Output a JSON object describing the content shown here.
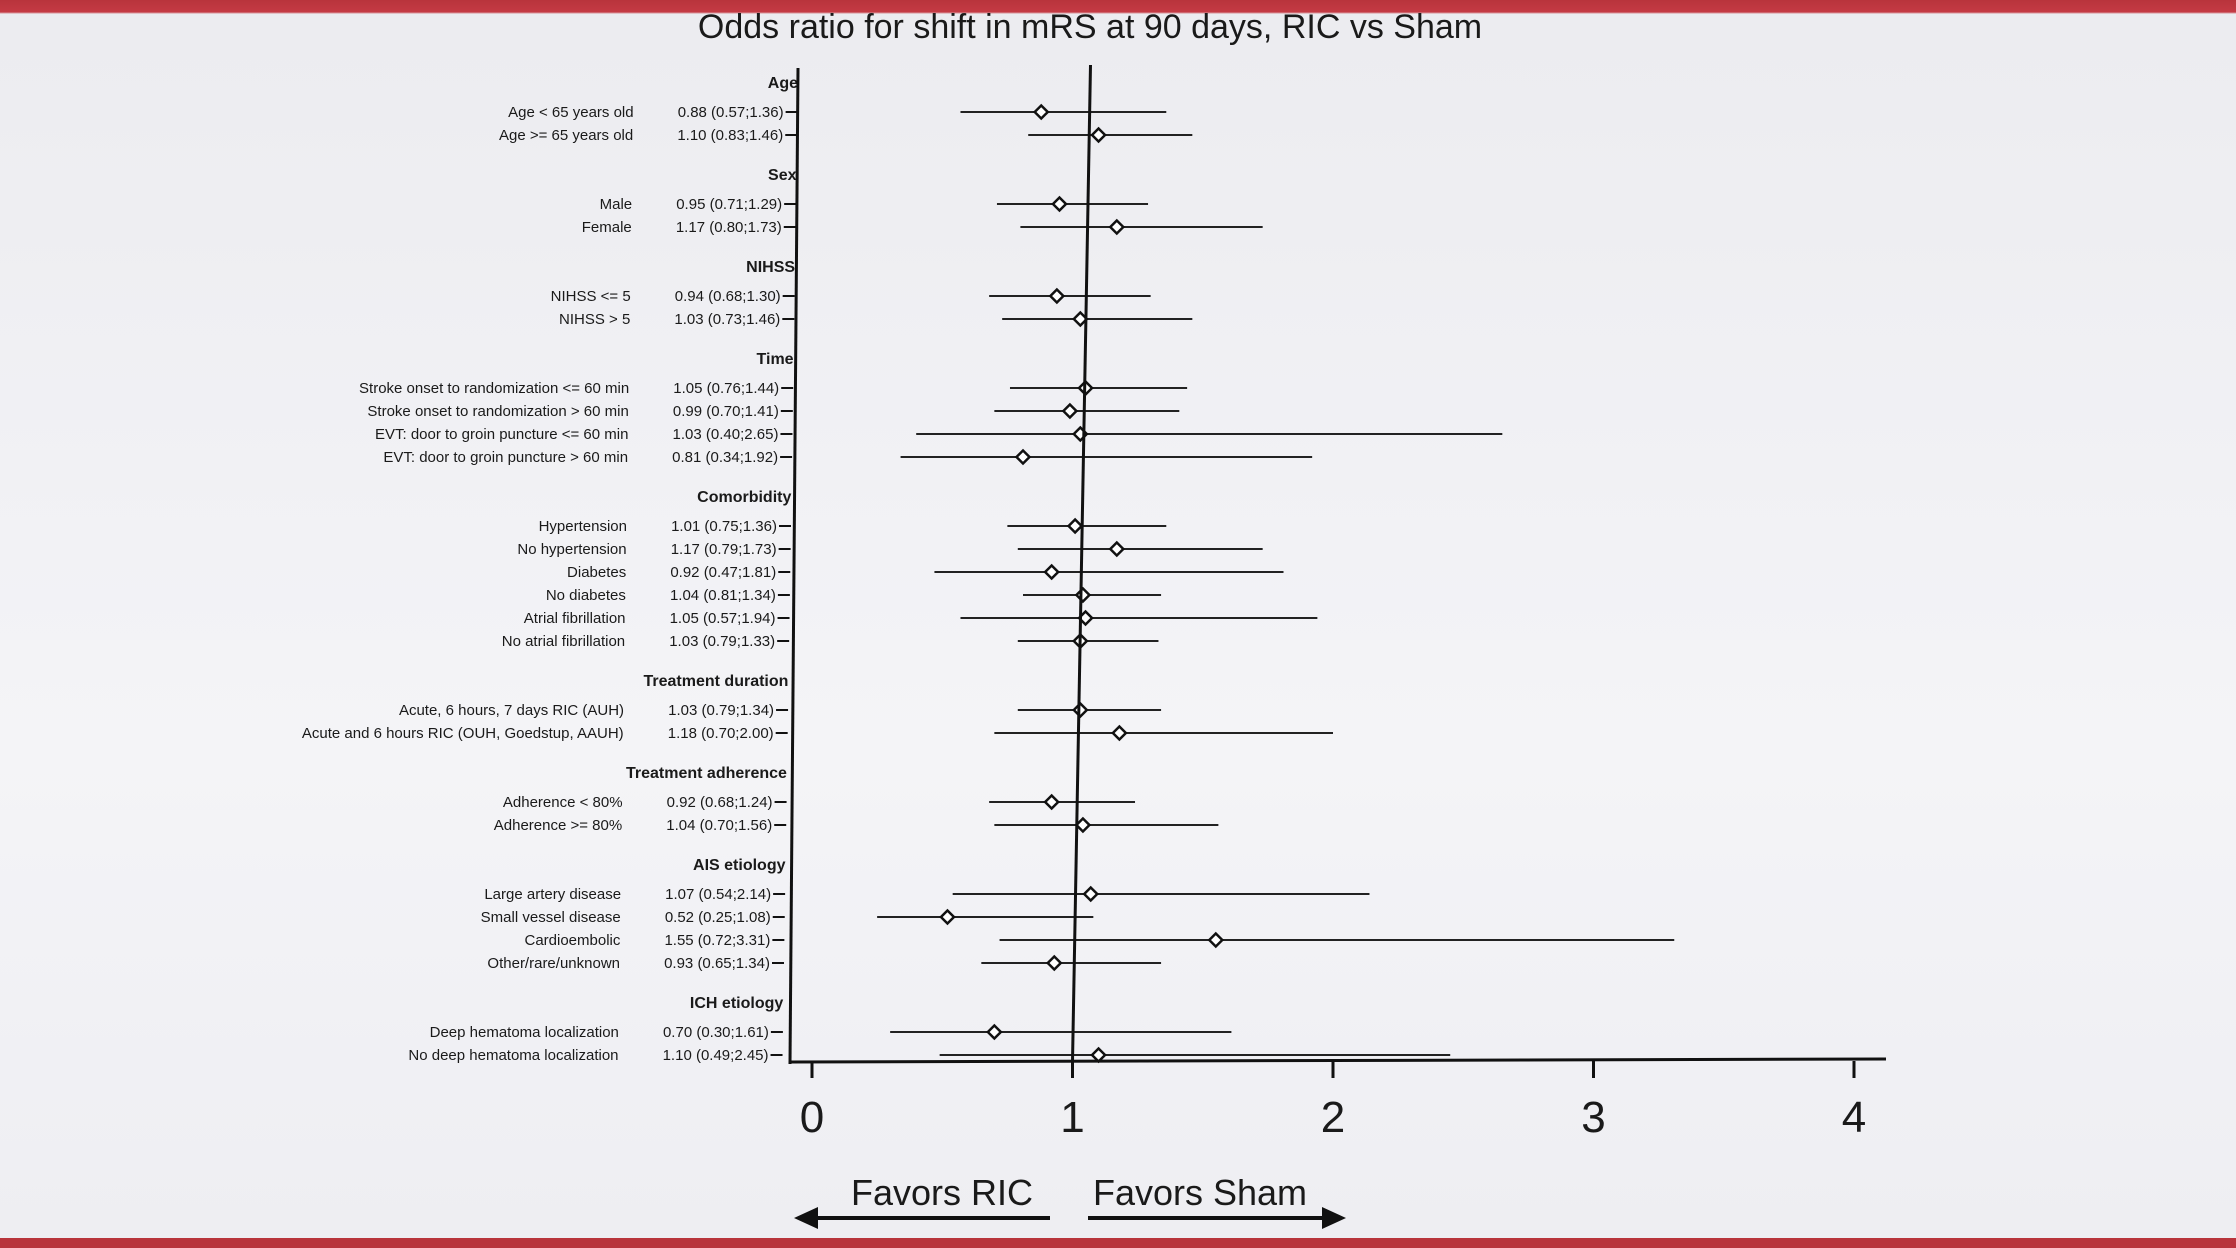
{
  "chart_data": {
    "type": "forest",
    "title": "Odds ratio for shift in mRS at 90 days, RIC vs Sham",
    "xlim": [
      0,
      4
    ],
    "x_ticks": [
      "0",
      "1",
      "2",
      "3",
      "4"
    ],
    "reference_line": 1,
    "favors_left": "Favors RIC",
    "favors_right": "Favors Sham",
    "groups": [
      {
        "name": "Age",
        "rows": [
          {
            "label": "Age < 65 years old",
            "ci_text": "0.88 (0.57;1.36)",
            "or": 0.88,
            "lo": 0.57,
            "hi": 1.36
          },
          {
            "label": "Age >= 65 years old",
            "ci_text": "1.10 (0.83;1.46)",
            "or": 1.1,
            "lo": 0.83,
            "hi": 1.46
          }
        ]
      },
      {
        "name": "Sex",
        "rows": [
          {
            "label": "Male",
            "ci_text": "0.95 (0.71;1.29)",
            "or": 0.95,
            "lo": 0.71,
            "hi": 1.29
          },
          {
            "label": "Female",
            "ci_text": "1.17 (0.80;1.73)",
            "or": 1.17,
            "lo": 0.8,
            "hi": 1.73
          }
        ]
      },
      {
        "name": "NIHSS",
        "rows": [
          {
            "label": "NIHSS <= 5",
            "ci_text": "0.94 (0.68;1.30)",
            "or": 0.94,
            "lo": 0.68,
            "hi": 1.3
          },
          {
            "label": "NIHSS > 5",
            "ci_text": "1.03 (0.73;1.46)",
            "or": 1.03,
            "lo": 0.73,
            "hi": 1.46
          }
        ]
      },
      {
        "name": "Time",
        "rows": [
          {
            "label": "Stroke onset to randomization <= 60 min",
            "ci_text": "1.05 (0.76;1.44)",
            "or": 1.05,
            "lo": 0.76,
            "hi": 1.44
          },
          {
            "label": "Stroke onset to randomization > 60 min",
            "ci_text": "0.99 (0.70;1.41)",
            "or": 0.99,
            "lo": 0.7,
            "hi": 1.41
          },
          {
            "label": "EVT: door to groin puncture <= 60 min",
            "ci_text": "1.03 (0.40;2.65)",
            "or": 1.03,
            "lo": 0.4,
            "hi": 2.65
          },
          {
            "label": "EVT: door to groin puncture > 60 min",
            "ci_text": "0.81 (0.34;1.92)",
            "or": 0.81,
            "lo": 0.34,
            "hi": 1.92
          }
        ]
      },
      {
        "name": "Comorbidity",
        "rows": [
          {
            "label": "Hypertension",
            "ci_text": "1.01 (0.75;1.36)",
            "or": 1.01,
            "lo": 0.75,
            "hi": 1.36
          },
          {
            "label": "No hypertension",
            "ci_text": "1.17 (0.79;1.73)",
            "or": 1.17,
            "lo": 0.79,
            "hi": 1.73
          },
          {
            "label": "Diabetes",
            "ci_text": "0.92 (0.47;1.81)",
            "or": 0.92,
            "lo": 0.47,
            "hi": 1.81
          },
          {
            "label": "No diabetes",
            "ci_text": "1.04 (0.81;1.34)",
            "or": 1.04,
            "lo": 0.81,
            "hi": 1.34
          },
          {
            "label": "Atrial fibrillation",
            "ci_text": "1.05 (0.57;1.94)",
            "or": 1.05,
            "lo": 0.57,
            "hi": 1.94
          },
          {
            "label": "No atrial fibrillation",
            "ci_text": "1.03 (0.79;1.33)",
            "or": 1.03,
            "lo": 0.79,
            "hi": 1.33
          }
        ]
      },
      {
        "name": "Treatment duration",
        "rows": [
          {
            "label": "Acute, 6 hours, 7 days RIC (AUH)",
            "ci_text": "1.03 (0.79;1.34)",
            "or": 1.03,
            "lo": 0.79,
            "hi": 1.34
          },
          {
            "label": "Acute and 6 hours RIC (OUH, Goedstup, AAUH)",
            "ci_text": "1.18 (0.70;2.00)",
            "or": 1.18,
            "lo": 0.7,
            "hi": 2.0
          }
        ]
      },
      {
        "name": "Treatment adherence",
        "rows": [
          {
            "label": "Adherence < 80%",
            "ci_text": "0.92 (0.68;1.24)",
            "or": 0.92,
            "lo": 0.68,
            "hi": 1.24
          },
          {
            "label": "Adherence >= 80%",
            "ci_text": "1.04 (0.70;1.56)",
            "or": 1.04,
            "lo": 0.7,
            "hi": 1.56
          }
        ]
      },
      {
        "name": "AIS etiology",
        "rows": [
          {
            "label": "Large artery disease",
            "ci_text": "1.07 (0.54;2.14)",
            "or": 1.07,
            "lo": 0.54,
            "hi": 2.14
          },
          {
            "label": "Small vessel disease",
            "ci_text": "0.52 (0.25;1.08)",
            "or": 0.52,
            "lo": 0.25,
            "hi": 1.08
          },
          {
            "label": "Cardioembolic",
            "ci_text": "1.55 (0.72;3.31)",
            "or": 1.55,
            "lo": 0.72,
            "hi": 3.31
          },
          {
            "label": "Other/rare/unknown",
            "ci_text": "0.93 (0.65;1.34)",
            "or": 0.93,
            "lo": 0.65,
            "hi": 1.34
          }
        ]
      },
      {
        "name": "ICH etiology",
        "rows": [
          {
            "label": "Deep hematoma localization",
            "ci_text": "0.70 (0.30;1.61)",
            "or": 0.7,
            "lo": 0.3,
            "hi": 1.61
          },
          {
            "label": "No deep hematoma localization",
            "ci_text": "1.10 (0.49;2.45)",
            "or": 1.1,
            "lo": 0.49,
            "hi": 2.45
          }
        ]
      }
    ]
  }
}
